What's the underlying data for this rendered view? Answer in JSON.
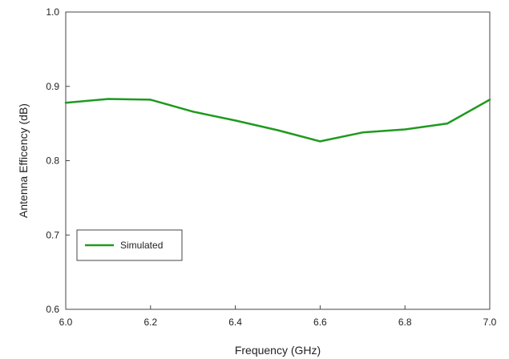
{
  "chart_data": {
    "type": "line",
    "xlabel": "Frequency (GHz)",
    "ylabel": "Antenna Efficency (dB)",
    "xlim": [
      6.0,
      7.0
    ],
    "ylim": [
      0.6,
      1.0
    ],
    "x_ticks": [
      6.0,
      6.2,
      6.4,
      6.6,
      6.8,
      7.0
    ],
    "x_tick_labels": [
      "6.0",
      "6.2",
      "6.4",
      "6.6",
      "6.8",
      "7.0"
    ],
    "y_ticks": [
      0.6,
      0.7,
      0.8,
      0.9,
      1.0
    ],
    "y_tick_labels": [
      "0.6",
      "0.7",
      "0.8",
      "0.9",
      "1.0"
    ],
    "grid": false,
    "legend_position": "lower-left",
    "series": [
      {
        "name": "Simulated",
        "color": "#1e9a1e",
        "x": [
          6.0,
          6.1,
          6.2,
          6.3,
          6.4,
          6.5,
          6.6,
          6.7,
          6.8,
          6.9,
          7.0
        ],
        "y": [
          0.878,
          0.883,
          0.882,
          0.866,
          0.854,
          0.841,
          0.826,
          0.838,
          0.842,
          0.85,
          0.882
        ]
      }
    ]
  }
}
